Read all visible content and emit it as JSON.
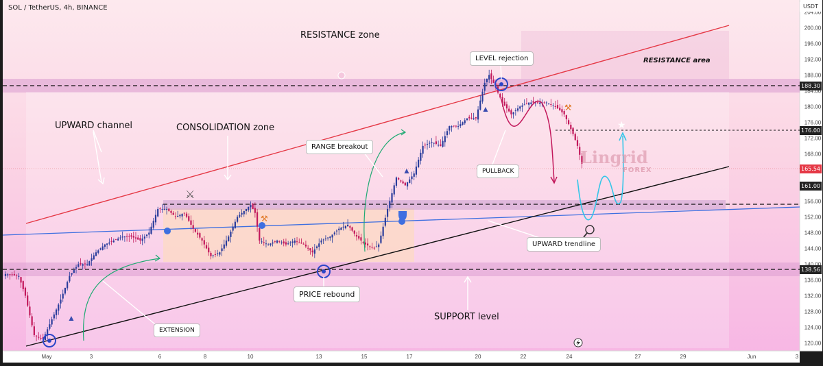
{
  "header": {
    "symbol": "SOL / TetherUS, 4h, BINANCE",
    "currency": "USDT"
  },
  "annotations": {
    "resistance_zone": "RESISTANCE zone",
    "resistance_area": "RESISTANCE area",
    "level_rejection": "LEVEL rejection",
    "upward_channel": "UPWARD channel",
    "consolidation_zone": "CONSOLIDATION zone",
    "range_breakout": "RANGE breakout",
    "pullback": "PULLBACK",
    "upward_trendline": "UPWARD trendline",
    "price_rebound": "PRICE rebound",
    "support_level": "SUPPORT level",
    "extension": "EXTENSION"
  },
  "watermark": {
    "name": "Lingrid",
    "sub": "FOREX"
  },
  "price_tags": {
    "p188": "188.30",
    "p176": "176.00",
    "p165": "165.54",
    "p161": "161.00",
    "p138": "138.56"
  },
  "colors": {
    "bull": "#2a3d9c",
    "bear": "#c2185b",
    "resistance_line": "#e53946",
    "trendline": "#111111",
    "blue_line": "#3e6fe0",
    "projection": "#34c6e8"
  },
  "chart_data": {
    "type": "candlestick",
    "symbol": "SOL / TetherUS",
    "timeframe": "4h",
    "exchange": "BINANCE",
    "ylim": [
      118,
      207
    ],
    "y_ticks": [
      204,
      200,
      196,
      192,
      188,
      184,
      180,
      176,
      172,
      168,
      164,
      160,
      156,
      152,
      148,
      144,
      140,
      136,
      132,
      128,
      124,
      120
    ],
    "x_ticks": [
      "May",
      "3",
      "6",
      "8",
      "10",
      "13",
      "15",
      "17",
      "20",
      "22",
      "24",
      "27",
      "29",
      "Jun",
      "3"
    ],
    "levels": [
      188.3,
      176.0,
      161.0,
      138.56
    ],
    "last_price": 165.54,
    "anchors": [
      [
        0,
        137.5
      ],
      [
        6,
        137
      ],
      [
        9,
        132
      ],
      [
        13,
        122
      ],
      [
        17,
        121
      ],
      [
        21,
        126
      ],
      [
        25,
        131
      ],
      [
        29,
        137
      ],
      [
        33,
        140
      ],
      [
        37,
        140
      ],
      [
        41,
        143
      ],
      [
        45,
        145
      ],
      [
        49,
        146
      ],
      [
        53,
        147
      ],
      [
        57,
        147
      ],
      [
        61,
        146
      ],
      [
        65,
        148
      ],
      [
        69,
        154
      ],
      [
        73,
        154
      ],
      [
        77,
        152
      ],
      [
        81,
        153
      ],
      [
        85,
        149
      ],
      [
        89,
        146
      ],
      [
        93,
        142
      ],
      [
        97,
        143
      ],
      [
        101,
        147
      ],
      [
        105,
        152
      ],
      [
        109,
        154
      ],
      [
        111,
        155
      ],
      [
        113,
        153
      ],
      [
        115,
        146
      ],
      [
        119,
        145
      ],
      [
        123,
        146
      ],
      [
        127,
        145
      ],
      [
        131,
        146
      ],
      [
        135,
        145
      ],
      [
        139,
        143
      ],
      [
        143,
        146
      ],
      [
        147,
        147
      ],
      [
        151,
        149
      ],
      [
        155,
        150
      ],
      [
        159,
        147
      ],
      [
        163,
        145
      ],
      [
        167,
        144
      ],
      [
        169,
        145
      ],
      [
        173,
        154
      ],
      [
        177,
        162
      ],
      [
        181,
        160
      ],
      [
        185,
        163
      ],
      [
        189,
        170
      ],
      [
        193,
        171
      ],
      [
        197,
        170
      ],
      [
        201,
        175
      ],
      [
        205,
        175
      ],
      [
        209,
        177
      ],
      [
        213,
        177
      ],
      [
        217,
        186
      ],
      [
        219,
        188
      ],
      [
        221,
        186
      ],
      [
        225,
        181
      ],
      [
        229,
        178
      ],
      [
        233,
        180
      ],
      [
        237,
        181
      ],
      [
        241,
        181
      ],
      [
        245,
        181
      ],
      [
        249,
        180
      ],
      [
        253,
        178
      ],
      [
        257,
        173
      ],
      [
        259,
        170
      ],
      [
        261,
        165.5
      ]
    ]
  }
}
